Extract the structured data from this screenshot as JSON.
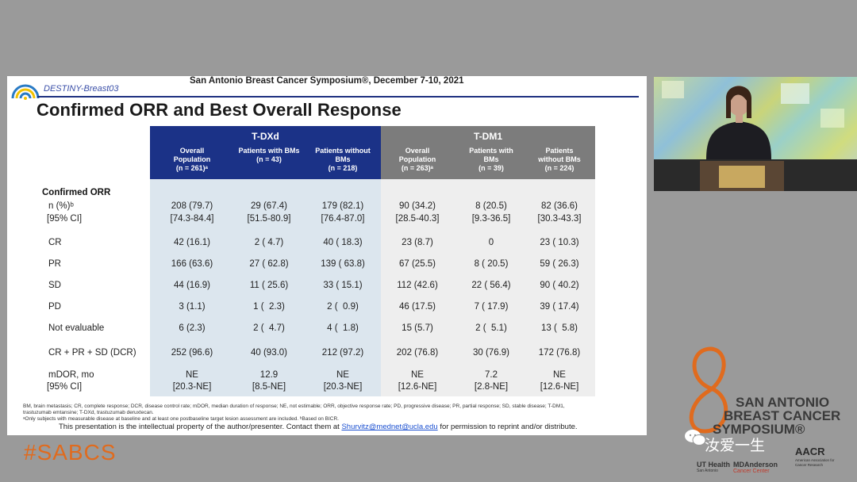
{
  "slide": {
    "trial_name": "DESTINY-Breast03",
    "conference": "San Antonio Breast Cancer Symposium®, December 7-10, 2021",
    "title": "Confirmed ORR and Best Overall Response",
    "groups": [
      "T-DXd",
      "T-DM1"
    ],
    "columns": [
      {
        "l1": "Overall",
        "l2": "Population",
        "l3": "(n = 261)ᵃ"
      },
      {
        "l1": "Patients with BMs",
        "l2": "(n = 43)",
        "l3": ""
      },
      {
        "l1": "Patients without",
        "l2": "BMs",
        "l3": "(n = 218)"
      },
      {
        "l1": "Overall",
        "l2": "Population",
        "l3": "(n = 263)ᵃ"
      },
      {
        "l1": "Patients with",
        "l2": "BMs",
        "l3": "(n = 39)"
      },
      {
        "l1": "Patients",
        "l2": "without BMs",
        "l3": "(n = 224)"
      }
    ],
    "section_label": "Confirmed ORR",
    "rows": [
      {
        "label": "n (%)ᵇ",
        "values": [
          "208 (79.7)",
          "29 (67.4)",
          "179 (82.1)",
          "90 (34.2)",
          "8 (20.5)",
          "82 (36.6)"
        ]
      },
      {
        "label": "[95% CI]",
        "values": [
          "[74.3-84.4]",
          "[51.5-80.9]",
          "[76.4-87.0]",
          "[28.5-40.3]",
          "[9.3-36.5]",
          "[30.3-43.3]"
        ]
      },
      {
        "label": "CR",
        "values": [
          "42 (16.1)",
          "2 ( 4.7)",
          "40 ( 18.3)",
          "23 (8.7)",
          "0",
          "23 ( 10.3)"
        ]
      },
      {
        "label": "PR",
        "values": [
          "166 (63.6)",
          "27 ( 62.8)",
          "139 ( 63.8)",
          "67 (25.5)",
          "8 ( 20.5)",
          "59 ( 26.3)"
        ]
      },
      {
        "label": "SD",
        "values": [
          "44 (16.9)",
          "11 ( 25.6)",
          "33 ( 15.1)",
          "112 (42.6)",
          "22 ( 56.4)",
          "90 ( 40.2)"
        ]
      },
      {
        "label": "PD",
        "values": [
          "3 (1.1)",
          "1 (  2.3)",
          "2 (  0.9)",
          "46 (17.5)",
          "7 ( 17.9)",
          "39 ( 17.4)"
        ]
      },
      {
        "label": "Not evaluable",
        "values": [
          "6 (2.3)",
          "2 (  4.7)",
          "4 (  1.8)",
          "15 (5.7)",
          "2 (  5.1)",
          "13 (  5.8)"
        ]
      },
      {
        "label": "CR + PR + SD (DCR)",
        "values": [
          "252 (96.6)",
          "40 (93.0)",
          "212 (97.2)",
          "202 (76.8)",
          "30 (76.9)",
          "172 (76.8)"
        ]
      },
      {
        "label": "mDOR, mo",
        "values": [
          "NE",
          "12.9",
          "NE",
          "NE",
          "7.2",
          "NE"
        ]
      },
      {
        "label": "[95% CI]",
        "values": [
          "[20.3-NE]",
          "[8.5-NE]",
          "[20.3-NE]",
          "[12.6-NE]",
          "[2.8-NE]",
          "[12.6-NE]"
        ]
      }
    ],
    "footnote1": "BM, brain metastasis; CR, complete response; DCR, disease control rate; mDOR, median duration of response; NE, not estimable; ORR, objective response rate; PD, progressive disease; PR, partial response; SD, stable disease; T-DM1,",
    "footnote2": "trastuzumab emtansine; T-DXd, trastuzumab deruxtecan.",
    "footnote3": "ᵃOnly subjects with measurable disease at baseline and at least one postbaseline target lesion assessment are included. ᵇBased on BICR.",
    "copyright_pre": "This presentation is the intellectual property of the author/presenter. Contact them at",
    "copyright_email": "Shurvitz@mednet@ucla.edu",
    "copyright_post": "for permission to reprint and/or distribute."
  },
  "branding": {
    "hashtag": "#SABCS",
    "logo_line1": "SAN ANTONIO",
    "logo_line2": "BREAST CANCER",
    "logo_line3": "SYMPOSIUM®",
    "watermark": "汝爱一生",
    "partner1": "UT Health",
    "partner1_sub": "San Antonio",
    "partner2": "MDAnderson",
    "partner2_sub": "Cancer Center",
    "partner3": "AACR",
    "partner3_sub": "American Association for Cancer Research"
  },
  "colors": {
    "tdxd_header": "#1b3287",
    "tdm1_header": "#7c7c7c",
    "tdxd_body": "#dce6ee",
    "tdm1_body": "#eeeeee",
    "hashtag": "#e06b1e"
  }
}
